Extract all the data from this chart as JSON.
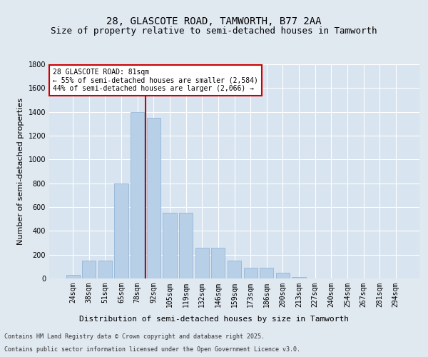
{
  "title_line1": "28, GLASCOTE ROAD, TAMWORTH, B77 2AA",
  "title_line2": "Size of property relative to semi-detached houses in Tamworth",
  "xlabel": "Distribution of semi-detached houses by size in Tamworth",
  "ylabel": "Number of semi-detached properties",
  "categories": [
    "24sqm",
    "38sqm",
    "51sqm",
    "65sqm",
    "78sqm",
    "92sqm",
    "105sqm",
    "119sqm",
    "132sqm",
    "146sqm",
    "159sqm",
    "173sqm",
    "186sqm",
    "200sqm",
    "213sqm",
    "227sqm",
    "240sqm",
    "254sqm",
    "267sqm",
    "281sqm",
    "294sqm"
  ],
  "values": [
    30,
    150,
    150,
    800,
    1400,
    1350,
    550,
    550,
    260,
    260,
    150,
    90,
    90,
    50,
    10,
    3,
    2,
    1,
    0,
    0,
    0
  ],
  "bar_color": "#b8cfe8",
  "bar_edge_color": "#8aafd4",
  "vline_x_index": 4.5,
  "vline_color": "#cc0000",
  "annotation_box_text": "28 GLASCOTE ROAD: 81sqm\n← 55% of semi-detached houses are smaller (2,584)\n44% of semi-detached houses are larger (2,066) →",
  "annotation_box_color": "#cc0000",
  "annotation_box_bg": "#ffffff",
  "ylim": [
    0,
    1800
  ],
  "yticks": [
    0,
    200,
    400,
    600,
    800,
    1000,
    1200,
    1400,
    1600,
    1800
  ],
  "bg_color": "#e0e8f0",
  "plot_bg_color": "#d8e4f0",
  "footer_line1": "Contains HM Land Registry data © Crown copyright and database right 2025.",
  "footer_line2": "Contains public sector information licensed under the Open Government Licence v3.0.",
  "grid_color": "#ffffff",
  "title_fontsize": 10,
  "subtitle_fontsize": 9,
  "tick_fontsize": 7,
  "label_fontsize": 8,
  "ann_fontsize": 7
}
